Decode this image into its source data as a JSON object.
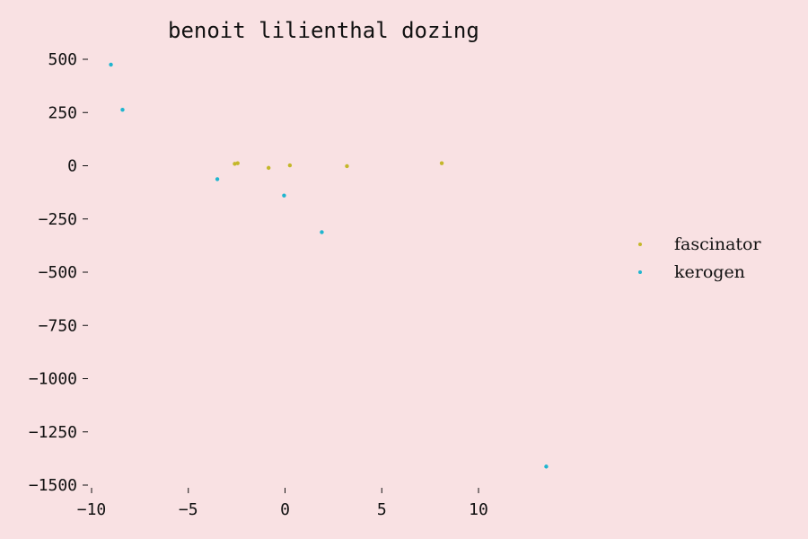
{
  "chart_data": {
    "type": "scatter",
    "title": "benoit lilienthal dozing",
    "xlabel": "",
    "ylabel": "",
    "xlim": [
      -10.2,
      14.0
    ],
    "ylim": [
      -1500,
      500
    ],
    "xticks": [
      -10,
      -5,
      0,
      5,
      10
    ],
    "yticks": [
      500,
      250,
      0,
      -250,
      -500,
      -750,
      -1000,
      -1250,
      -1500
    ],
    "xtick_labels": [
      "−10",
      "−5",
      "0",
      "5",
      "10"
    ],
    "ytick_labels": [
      "500",
      "250",
      "0",
      "−250",
      "−500",
      "−750",
      "−1000",
      "−1250",
      "−1500"
    ],
    "grid": false,
    "legend_position": "center-right",
    "series": [
      {
        "name": "fascinator",
        "color": "#c4b72a",
        "points": [
          {
            "x": -2.6,
            "y": 9
          },
          {
            "x": -2.45,
            "y": 12
          },
          {
            "x": -0.85,
            "y": -10
          },
          {
            "x": 0.25,
            "y": 2
          },
          {
            "x": 3.2,
            "y": -2
          },
          {
            "x": 8.1,
            "y": 12
          }
        ]
      },
      {
        "name": "kerogen",
        "color": "#1fb5cf",
        "points": [
          {
            "x": -9.0,
            "y": 475
          },
          {
            "x": -8.4,
            "y": 263
          },
          {
            "x": -3.5,
            "y": -63
          },
          {
            "x": -0.05,
            "y": -140
          },
          {
            "x": 1.9,
            "y": -312
          },
          {
            "x": 13.5,
            "y": -1413
          }
        ]
      }
    ]
  }
}
